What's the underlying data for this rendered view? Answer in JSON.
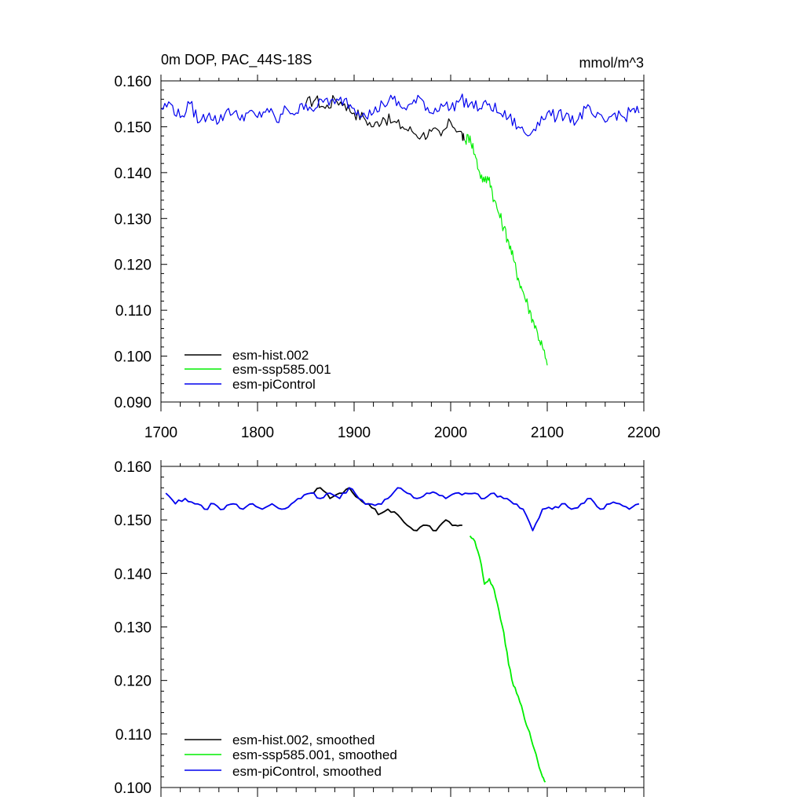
{
  "figure": {
    "background": "#ffffff"
  },
  "colors": {
    "hist": "#000000",
    "ssp": "#00ee00",
    "pic": "#0000ee",
    "axis": "#000000"
  },
  "chart_data": [
    {
      "type": "line",
      "title": "0m DOP, PAC_44S-18S",
      "units": "mmol/m^3",
      "xlabel": "",
      "ylabel": "",
      "xlim": [
        1700,
        2200
      ],
      "ylim": [
        0.09,
        0.16
      ],
      "xticks": [
        1700,
        1800,
        1900,
        2000,
        2100,
        2200
      ],
      "xtick_labels": [
        "1700",
        "1800",
        "1900",
        "2000",
        "2100",
        "2200"
      ],
      "yticks": [
        0.09,
        0.1,
        0.11,
        0.12,
        0.13,
        0.14,
        0.15,
        0.16
      ],
      "ytick_labels": [
        "0.090",
        "0.100",
        "0.110",
        "0.120",
        "0.130",
        "0.140",
        "0.150",
        "0.160"
      ],
      "grid": false,
      "legend_position": "bottom-left",
      "series": [
        {
          "name": "esm-hist.002",
          "color": "#000000",
          "x": [
            1850,
            1860,
            1870,
            1880,
            1890,
            1900,
            1910,
            1920,
            1930,
            1940,
            1950,
            1960,
            1970,
            1980,
            1990,
            2000,
            2010,
            2014
          ],
          "y": [
            0.155,
            0.156,
            0.154,
            0.156,
            0.155,
            0.153,
            0.152,
            0.15,
            0.152,
            0.151,
            0.15,
            0.149,
            0.148,
            0.149,
            0.148,
            0.151,
            0.149,
            0.147
          ]
        },
        {
          "name": "esm-ssp585.001",
          "color": "#00ee00",
          "x": [
            2015,
            2020,
            2025,
            2030,
            2035,
            2040,
            2045,
            2050,
            2055,
            2060,
            2065,
            2070,
            2075,
            2080,
            2085,
            2090,
            2095,
            2100
          ],
          "y": [
            0.147,
            0.148,
            0.144,
            0.14,
            0.138,
            0.139,
            0.134,
            0.131,
            0.128,
            0.125,
            0.121,
            0.117,
            0.114,
            0.111,
            0.108,
            0.105,
            0.102,
            0.098
          ]
        },
        {
          "name": "esm-piControl",
          "color": "#0000ee",
          "x": [
            1700,
            1710,
            1720,
            1730,
            1740,
            1750,
            1760,
            1770,
            1780,
            1790,
            1800,
            1810,
            1820,
            1830,
            1840,
            1850,
            1860,
            1870,
            1880,
            1890,
            1900,
            1910,
            1920,
            1930,
            1940,
            1950,
            1960,
            1970,
            1980,
            1990,
            2000,
            2010,
            2020,
            2030,
            2040,
            2050,
            2060,
            2070,
            2080,
            2090,
            2100,
            2110,
            2120,
            2130,
            2140,
            2150,
            2160,
            2170,
            2180,
            2190,
            2195
          ],
          "y": [
            0.154,
            0.155,
            0.152,
            0.155,
            0.151,
            0.153,
            0.151,
            0.154,
            0.152,
            0.153,
            0.152,
            0.154,
            0.151,
            0.154,
            0.153,
            0.155,
            0.154,
            0.156,
            0.155,
            0.156,
            0.154,
            0.153,
            0.153,
            0.155,
            0.156,
            0.154,
            0.155,
            0.156,
            0.153,
            0.155,
            0.154,
            0.156,
            0.155,
            0.154,
            0.155,
            0.153,
            0.152,
            0.15,
            0.148,
            0.151,
            0.153,
            0.152,
            0.153,
            0.151,
            0.154,
            0.152,
            0.151,
            0.153,
            0.152,
            0.154,
            0.153
          ]
        }
      ]
    },
    {
      "type": "line",
      "title": "",
      "units": "",
      "xlabel": "",
      "ylabel": "",
      "xlim": [
        1700,
        2200
      ],
      "ylim": [
        0.1,
        0.16
      ],
      "xticks": [
        1700,
        1800,
        1900,
        2000,
        2100,
        2200
      ],
      "yticks": [
        0.1,
        0.11,
        0.12,
        0.13,
        0.14,
        0.15,
        0.16
      ],
      "ytick_labels": [
        "0.100",
        "0.110",
        "0.120",
        "0.130",
        "0.140",
        "0.150",
        "0.160"
      ],
      "grid": false,
      "legend_position": "bottom-left",
      "series": [
        {
          "name": "esm-hist.002, smoothed",
          "color": "#000000",
          "x": [
            1855,
            1865,
            1875,
            1885,
            1895,
            1905,
            1915,
            1925,
            1935,
            1945,
            1955,
            1965,
            1975,
            1985,
            1995,
            2005,
            2012
          ],
          "y": [
            0.155,
            0.156,
            0.154,
            0.155,
            0.156,
            0.154,
            0.153,
            0.151,
            0.152,
            0.151,
            0.149,
            0.148,
            0.149,
            0.148,
            0.15,
            0.149,
            0.149
          ]
        },
        {
          "name": "esm-ssp585.001, smoothed",
          "color": "#00ee00",
          "x": [
            2020,
            2025,
            2030,
            2035,
            2040,
            2045,
            2050,
            2055,
            2060,
            2065,
            2070,
            2075,
            2080,
            2085,
            2090,
            2095,
            2098
          ],
          "y": [
            0.147,
            0.146,
            0.143,
            0.138,
            0.139,
            0.137,
            0.133,
            0.129,
            0.123,
            0.119,
            0.117,
            0.114,
            0.111,
            0.108,
            0.105,
            0.102,
            0.101
          ]
        },
        {
          "name": "esm-piControl, smoothed",
          "color": "#0000ee",
          "x": [
            1705,
            1715,
            1725,
            1735,
            1745,
            1755,
            1765,
            1775,
            1785,
            1795,
            1805,
            1815,
            1825,
            1835,
            1845,
            1855,
            1865,
            1875,
            1885,
            1895,
            1905,
            1915,
            1925,
            1935,
            1945,
            1955,
            1965,
            1975,
            1985,
            1995,
            2005,
            2015,
            2025,
            2035,
            2045,
            2055,
            2065,
            2075,
            2085,
            2095,
            2105,
            2115,
            2125,
            2135,
            2145,
            2155,
            2165,
            2175,
            2185,
            2195
          ],
          "y": [
            0.155,
            0.153,
            0.154,
            0.153,
            0.152,
            0.153,
            0.152,
            0.153,
            0.152,
            0.153,
            0.152,
            0.153,
            0.152,
            0.153,
            0.154,
            0.155,
            0.154,
            0.155,
            0.154,
            0.156,
            0.154,
            0.153,
            0.153,
            0.154,
            0.156,
            0.155,
            0.154,
            0.155,
            0.155,
            0.154,
            0.155,
            0.155,
            0.155,
            0.154,
            0.155,
            0.154,
            0.153,
            0.152,
            0.148,
            0.152,
            0.152,
            0.153,
            0.152,
            0.153,
            0.154,
            0.152,
            0.153,
            0.153,
            0.152,
            0.153
          ]
        }
      ]
    }
  ]
}
